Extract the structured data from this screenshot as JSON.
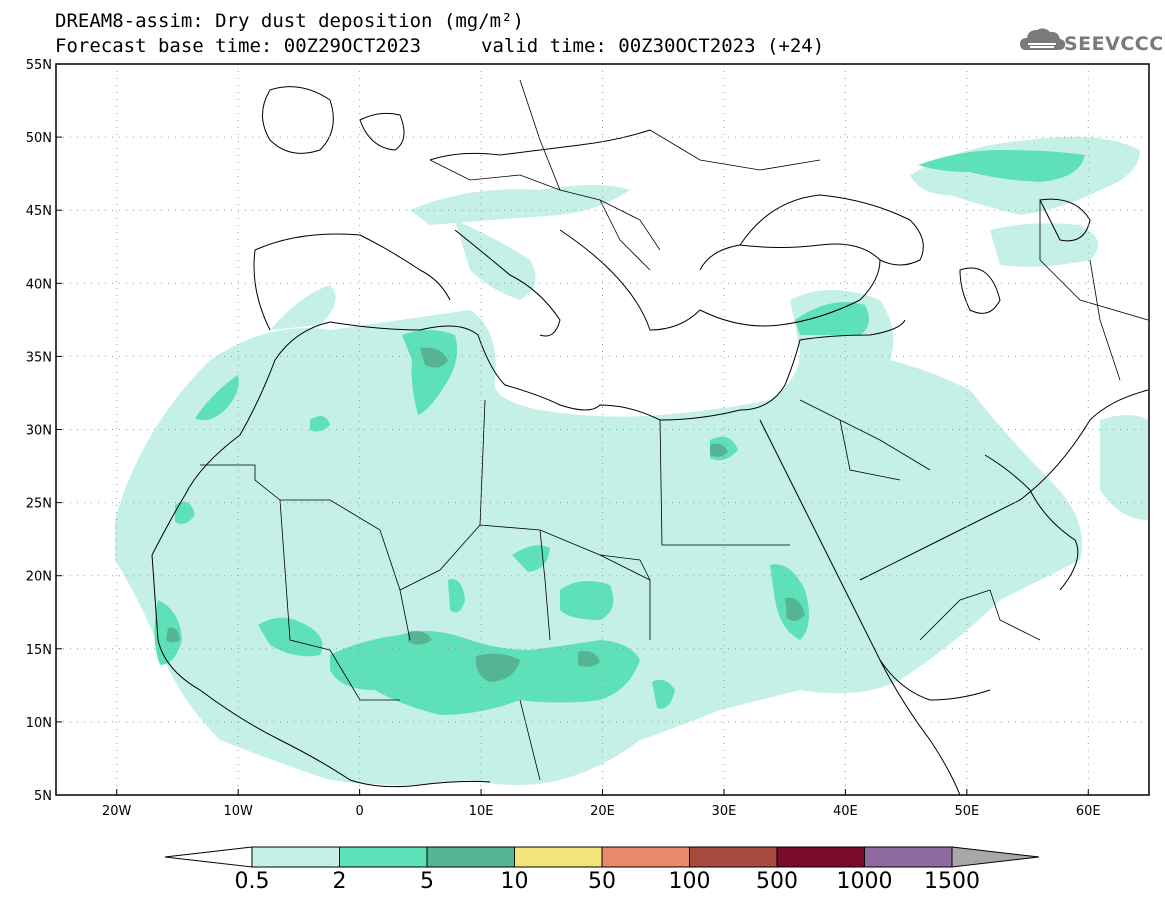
{
  "header": {
    "line1": "DREAM8-assim: Dry dust deposition (mg/m²)",
    "line2_left": "Forecast base time: 00Z29OCT2023",
    "line2_right": "valid time: 00Z30OCT2023 (+24)"
  },
  "logo": {
    "text": "SEEVCCC",
    "icon": "cloud-logo-icon"
  },
  "map": {
    "lon_range": [
      -25,
      65
    ],
    "lat_range": [
      5,
      55
    ],
    "lon_ticks": [
      {
        "value": -20,
        "label": "20W"
      },
      {
        "value": -10,
        "label": "10W"
      },
      {
        "value": 0,
        "label": "0"
      },
      {
        "value": 10,
        "label": "10E"
      },
      {
        "value": 20,
        "label": "20E"
      },
      {
        "value": 30,
        "label": "30E"
      },
      {
        "value": 40,
        "label": "40E"
      },
      {
        "value": 50,
        "label": "50E"
      },
      {
        "value": 60,
        "label": "60E"
      }
    ],
    "lat_ticks": [
      {
        "value": 55,
        "label": "55N"
      },
      {
        "value": 50,
        "label": "50N"
      },
      {
        "value": 45,
        "label": "45N"
      },
      {
        "value": 40,
        "label": "40N"
      },
      {
        "value": 35,
        "label": "35N"
      },
      {
        "value": 30,
        "label": "30N"
      },
      {
        "value": 25,
        "label": "25N"
      },
      {
        "value": 20,
        "label": "20N"
      },
      {
        "value": 15,
        "label": "15N"
      },
      {
        "value": 10,
        "label": "10N"
      },
      {
        "value": 5,
        "label": "5N"
      }
    ],
    "grid": "dotted"
  },
  "colorbar": {
    "labels": [
      "0.5",
      "2",
      "5",
      "10",
      "50",
      "100",
      "500",
      "1000",
      "1500"
    ],
    "colors": [
      "#c4f0e8",
      "#5ee0b8",
      "#55b592",
      "#f3e47a",
      "#e8896a",
      "#a94a40",
      "#7a0a2a",
      "#8f6ba0"
    ],
    "under_color": "#ffffff",
    "over_color": "#a8a8a8"
  },
  "layers": {
    "light": "#c4f0e8",
    "medium": "#5ee0b8",
    "dark": "#55b592",
    "darkest": "#4f9e88"
  }
}
